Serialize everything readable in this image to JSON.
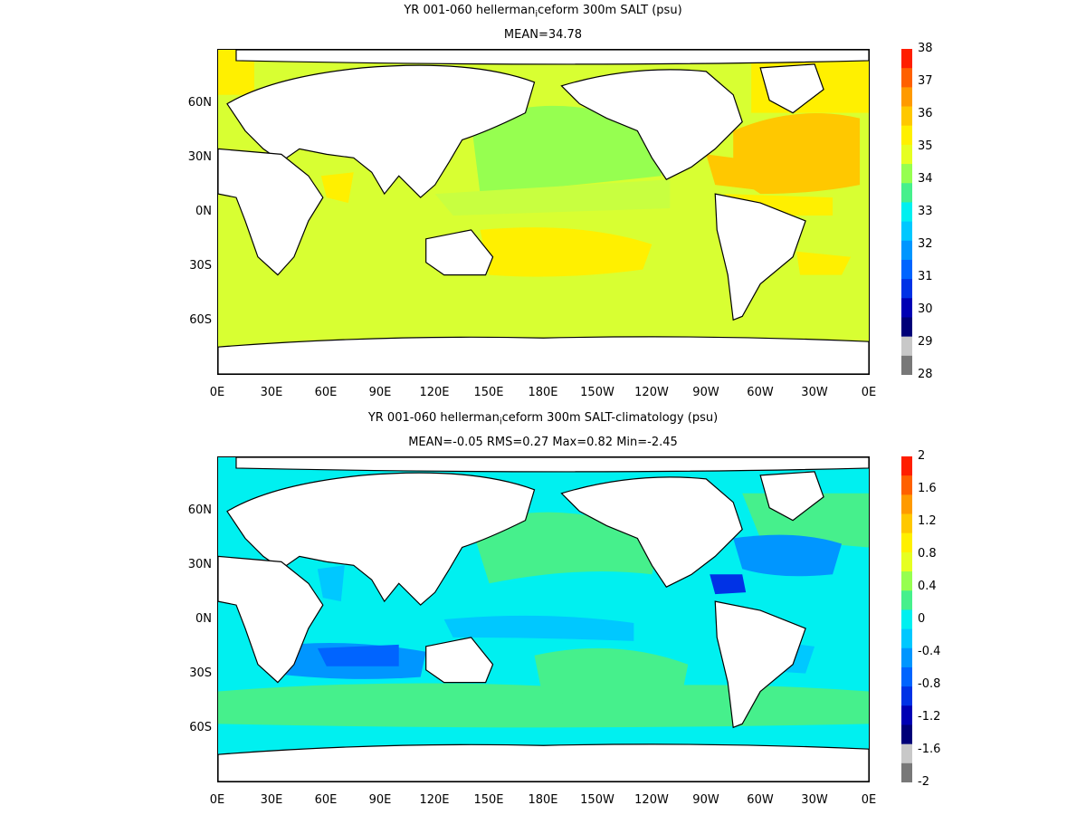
{
  "top": {
    "title": "YR 001-060 hellerman",
    "title_sub": "i",
    "title_rest": "ceform 300m SALT (psu)",
    "subtitle": "MEAN=34.78",
    "colorbar": {
      "labels": [
        "38",
        "37",
        "36",
        "35",
        "34",
        "33",
        "32",
        "31",
        "30",
        "29",
        "28"
      ],
      "colors": [
        "#ff1e00",
        "#ff6000",
        "#ff9a00",
        "#ffc800",
        "#fff000",
        "#e6ff22",
        "#96ff50",
        "#46f08c",
        "#00f0f0",
        "#00c8ff",
        "#0096ff",
        "#0064ff",
        "#0032e6",
        "#0000b4",
        "#000078",
        "#c8c8c8",
        "#787878"
      ]
    },
    "field_colors": {
      "base": "#d8ff32",
      "high": "#fff000",
      "higher": "#ffc800",
      "low": "#96ff50"
    }
  },
  "bottom": {
    "title": "YR 001-060 hellerman",
    "title_sub": "i",
    "title_rest": "ceform 300m SALT-climatology (psu)",
    "subtitle": "MEAN=-0.05   RMS=0.27   Max=0.82   Min=-2.45",
    "colorbar": {
      "labels": [
        "2",
        "1.6",
        "1.2",
        "0.8",
        "0.4",
        "0",
        "-0.4",
        "-0.8",
        "-1.2",
        "-1.6",
        "-2"
      ],
      "colors": [
        "#ff1e00",
        "#ff6000",
        "#ff9a00",
        "#ffc800",
        "#fff000",
        "#e6ff22",
        "#96ff50",
        "#46f08c",
        "#00f0f0",
        "#00c8ff",
        "#0096ff",
        "#0064ff",
        "#0032e6",
        "#0000b4",
        "#000078",
        "#c8c8c8",
        "#787878"
      ]
    },
    "field_colors": {
      "base": "#00f0f0",
      "pos": "#46f08c",
      "neg": "#00c8ff",
      "neg2": "#0096ff",
      "neg3": "#0032e6"
    }
  },
  "axes": {
    "x_ticks": [
      "0E",
      "30E",
      "60E",
      "90E",
      "120E",
      "150E",
      "180E",
      "150W",
      "120W",
      "90W",
      "60W",
      "30W",
      "0E"
    ],
    "y_ticks": [
      "60N",
      "30N",
      "0N",
      "30S",
      "60S"
    ]
  }
}
